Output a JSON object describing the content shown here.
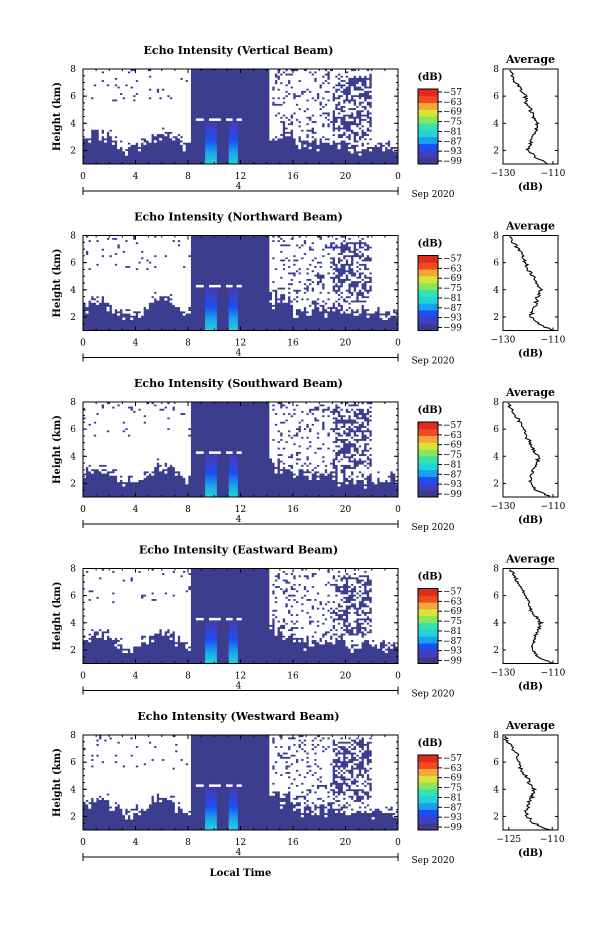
{
  "colors": {
    "background": "#3d3d8f",
    "colormap": [
      "#3b3b8c",
      "#3f3fc0",
      "#1c4ff2",
      "#1aa0ee",
      "#22d4d8",
      "#35e2b0",
      "#8ae65b",
      "#d8e43a",
      "#f4a738",
      "#f04a22",
      "#e02b1a"
    ]
  },
  "chart_data": [
    {
      "type": "heatmap",
      "title": "Echo Intensity (Vertical Beam)",
      "xlabel": "",
      "ylabel": "Height (km)",
      "xlim": [
        0,
        24
      ],
      "ylim": [
        1,
        8
      ],
      "xticks": [
        "0",
        "4",
        "8",
        "12",
        "16",
        "20",
        "0"
      ],
      "yticks": [
        "2",
        "4",
        "6",
        "8"
      ],
      "date_marker": "4",
      "date_label": "Sep 2020",
      "colorbar": {
        "unit": "(dB)",
        "ticks": [
          "−57",
          "−63",
          "−69",
          "−75",
          "−81",
          "−87",
          "−93",
          "−99"
        ]
      },
      "profile": {
        "title": "Average",
        "xlabel": "(dB)",
        "xticks": [
          "−130",
          "−110"
        ],
        "xlim": [
          -130,
          -108
        ],
        "yticks": [
          "2",
          "4",
          "6",
          "8"
        ],
        "ylim": [
          1,
          8
        ],
        "heights": [
          1.0,
          1.5,
          2.0,
          2.5,
          3.0,
          3.5,
          4.0,
          4.5,
          5.0,
          5.5,
          6.0,
          6.5,
          7.0,
          7.5,
          8.0
        ],
        "values": [
          -112,
          -117,
          -120,
          -119,
          -118,
          -117,
          -116,
          -118,
          -119,
          -121,
          -121,
          -123,
          -125,
          -126,
          -128
        ]
      }
    },
    {
      "type": "heatmap",
      "title": "Echo Intensity (Northward Beam)",
      "xlabel": "",
      "ylabel": "Height (km)",
      "xlim": [
        0,
        24
      ],
      "ylim": [
        1,
        8
      ],
      "xticks": [
        "0",
        "4",
        "8",
        "12",
        "16",
        "20",
        "0"
      ],
      "yticks": [
        "2",
        "4",
        "6",
        "8"
      ],
      "date_marker": "4",
      "date_label": "Sep 2020",
      "colorbar": {
        "unit": "(dB)",
        "ticks": [
          "−57",
          "−63",
          "−69",
          "−75",
          "−81",
          "−87",
          "−93",
          "−99"
        ]
      },
      "profile": {
        "title": "Average",
        "xlabel": "(dB)",
        "xticks": [
          "−130",
          "−110"
        ],
        "xlim": [
          -130,
          -108
        ],
        "yticks": [
          "2",
          "4",
          "6",
          "8"
        ],
        "ylim": [
          1,
          8
        ],
        "heights": [
          1.0,
          1.5,
          2.0,
          2.5,
          3.0,
          3.5,
          4.0,
          4.5,
          5.0,
          5.5,
          6.0,
          6.5,
          7.0,
          7.5,
          8.0
        ],
        "values": [
          -110,
          -116,
          -119,
          -118,
          -117,
          -116,
          -115,
          -117,
          -118,
          -120,
          -121,
          -122,
          -124,
          -126,
          -128
        ]
      }
    },
    {
      "type": "heatmap",
      "title": "Echo Intensity (Southward Beam)",
      "xlabel": "",
      "ylabel": "Height (km)",
      "xlim": [
        0,
        24
      ],
      "ylim": [
        1,
        8
      ],
      "xticks": [
        "0",
        "4",
        "8",
        "12",
        "16",
        "20",
        "0"
      ],
      "yticks": [
        "2",
        "4",
        "6",
        "8"
      ],
      "date_marker": "4",
      "date_label": "Sep 2020",
      "colorbar": {
        "unit": "(dB)",
        "ticks": [
          "−57",
          "−63",
          "−69",
          "−75",
          "−81",
          "−87",
          "−93",
          "−99"
        ]
      },
      "profile": {
        "title": "Average",
        "xlabel": "(dB)",
        "xticks": [
          "−130",
          "−110"
        ],
        "xlim": [
          -130,
          -108
        ],
        "yticks": [
          "2",
          "4",
          "6",
          "8"
        ],
        "ylim": [
          1,
          8
        ],
        "heights": [
          1.0,
          1.5,
          2.0,
          2.5,
          3.0,
          3.5,
          4.0,
          4.5,
          5.0,
          5.5,
          6.0,
          6.5,
          7.0,
          7.5,
          8.0
        ],
        "values": [
          -111,
          -117,
          -119,
          -119,
          -118,
          -116,
          -116,
          -118,
          -119,
          -121,
          -122,
          -123,
          -125,
          -127,
          -128
        ]
      }
    },
    {
      "type": "heatmap",
      "title": "Echo Intensity (Eastward Beam)",
      "xlabel": "",
      "ylabel": "Height (km)",
      "xlim": [
        0,
        24
      ],
      "ylim": [
        1,
        8
      ],
      "xticks": [
        "0",
        "4",
        "8",
        "12",
        "16",
        "20",
        "0"
      ],
      "yticks": [
        "2",
        "4",
        "6",
        "8"
      ],
      "date_marker": "4",
      "date_label": "Sep 2020",
      "colorbar": {
        "unit": "(dB)",
        "ticks": [
          "−57",
          "−63",
          "−69",
          "−75",
          "−81",
          "−87",
          "−93",
          "−99"
        ]
      },
      "profile": {
        "title": "Average",
        "xlabel": "(dB)",
        "xticks": [
          "−130",
          "−110"
        ],
        "xlim": [
          -130,
          -108
        ],
        "yticks": [
          "2",
          "4",
          "6",
          "8"
        ],
        "ylim": [
          1,
          8
        ],
        "heights": [
          1.0,
          1.5,
          2.0,
          2.5,
          3.0,
          3.5,
          4.0,
          4.5,
          5.0,
          5.5,
          6.0,
          6.5,
          7.0,
          7.5,
          8.0
        ],
        "values": [
          -110,
          -116,
          -118,
          -118,
          -117,
          -116,
          -115,
          -117,
          -119,
          -120,
          -121,
          -122,
          -124,
          -126,
          -127
        ]
      }
    },
    {
      "type": "heatmap",
      "title": "Echo Intensity (Westward Beam)",
      "xlabel": "Local Time",
      "ylabel": "Height (km)",
      "xlim": [
        0,
        24
      ],
      "ylim": [
        1,
        8
      ],
      "xticks": [
        "0",
        "4",
        "8",
        "12",
        "16",
        "20",
        "0"
      ],
      "yticks": [
        "2",
        "4",
        "6",
        "8"
      ],
      "date_marker": "4",
      "date_label": "Sep 2020",
      "colorbar": {
        "unit": "(dB)",
        "ticks": [
          "−57",
          "−63",
          "−69",
          "−75",
          "−81",
          "−87",
          "−93",
          "−99"
        ]
      },
      "profile": {
        "title": "Average",
        "xlabel": "(dB)",
        "xticks": [
          "−125",
          "−110"
        ],
        "xlim": [
          -127,
          -108
        ],
        "yticks": [
          "2",
          "4",
          "6",
          "8"
        ],
        "ylim": [
          1,
          8
        ],
        "heights": [
          1.0,
          1.5,
          2.0,
          2.5,
          3.0,
          3.5,
          4.0,
          4.5,
          5.0,
          5.5,
          6.0,
          6.5,
          7.0,
          7.5,
          8.0
        ],
        "values": [
          -111,
          -116,
          -119,
          -119,
          -118,
          -117,
          -116,
          -118,
          -119,
          -121,
          -121,
          -122,
          -124,
          -125,
          -127
        ]
      }
    }
  ]
}
